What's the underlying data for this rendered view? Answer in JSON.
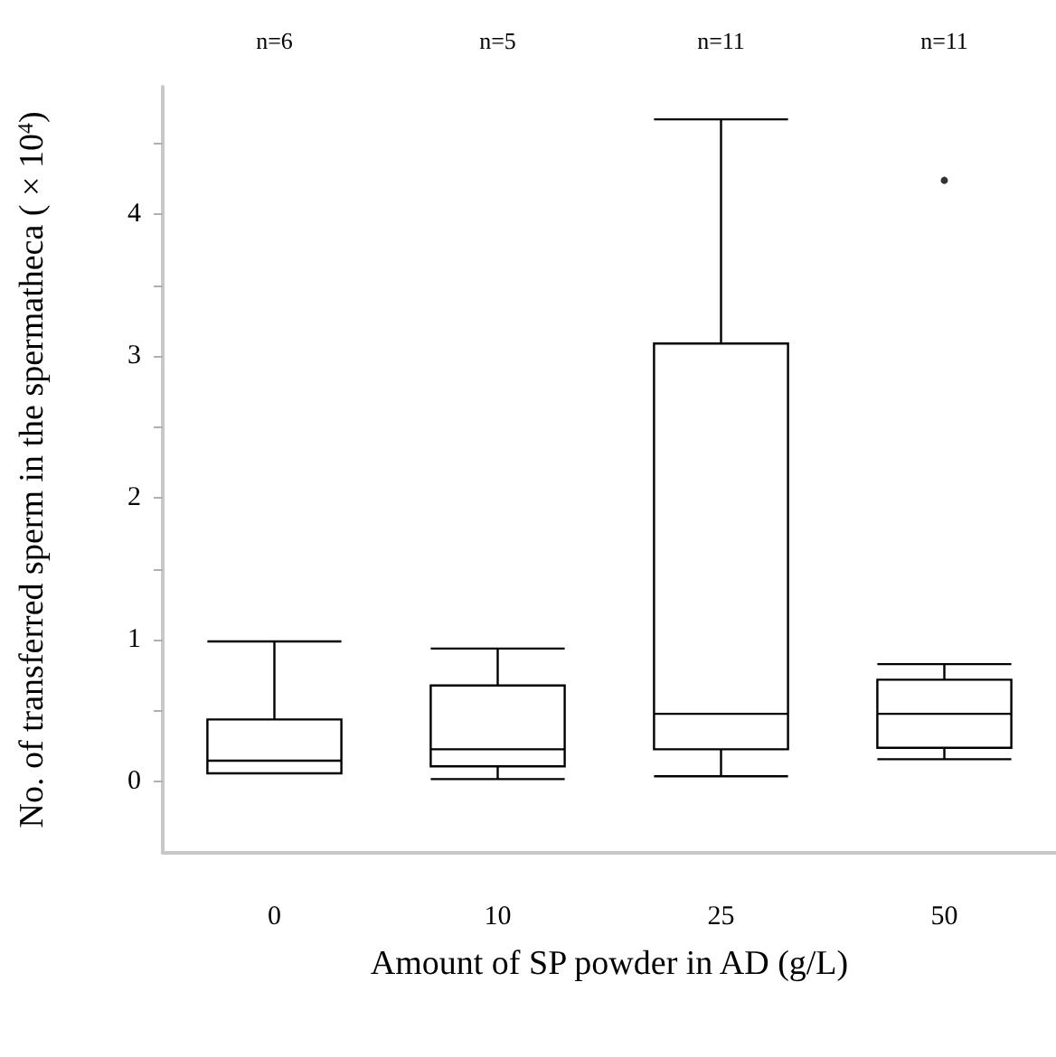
{
  "chart_data": {
    "type": "box",
    "xlabel": "Amount of SP powder in AD (g/L)",
    "ylabel": "No. of transferred sperm in the spermatheca ( × 10$^{4}$)",
    "categories": [
      "0",
      "10",
      "25",
      "50"
    ],
    "boxes": [
      {
        "low": 0.06,
        "q1": 0.06,
        "median": 0.15,
        "q3": 0.44,
        "high": 0.99
      },
      {
        "low": 0.02,
        "q1": 0.11,
        "median": 0.23,
        "q3": 0.68,
        "high": 0.94
      },
      {
        "low": 0.04,
        "q1": 0.23,
        "median": 0.48,
        "q3": 3.09,
        "high": 4.67
      },
      {
        "low": 0.16,
        "q1": 0.24,
        "median": 0.48,
        "q3": 0.72,
        "high": 0.83,
        "outliers": [
          4.24
        ]
      }
    ],
    "color": "#000000",
    "ylim": [
      -0.5,
      4.9
    ],
    "yticks": [
      0,
      {
        "value": 0.5,
        "label": null
      },
      1,
      {
        "value": 1.5,
        "label": null
      },
      2,
      {
        "value": 2.5,
        "label": null
      },
      3,
      {
        "value": 3.5,
        "label": null
      },
      4,
      {
        "value": 4.5,
        "label": null
      }
    ],
    "marker": "circle",
    "annotations": [
      "n=6",
      "n=5",
      "n=11",
      "n=11"
    ]
  }
}
